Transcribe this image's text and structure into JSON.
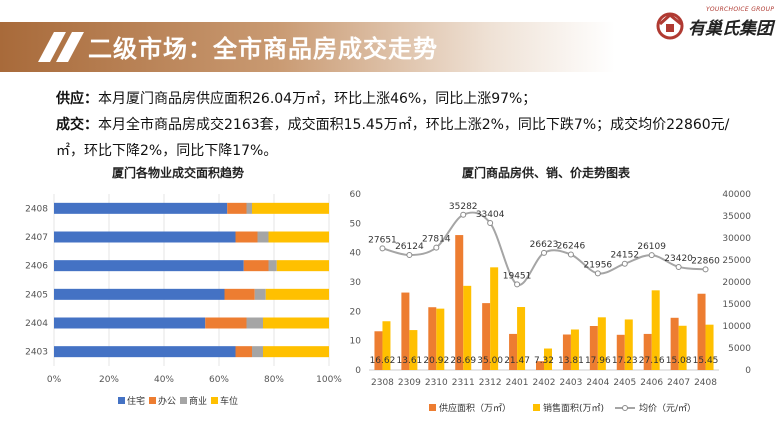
{
  "header": {
    "title": "二级市场：全市商品房成交走势",
    "logo_sub": "YOURCHOICE GROUP",
    "logo_main": "有巢氏集团"
  },
  "summary": {
    "supply_label": "供应：",
    "supply_text": "本月厦门商品房供应面积26.04万㎡，环比上涨46%，同比上涨97%；",
    "deal_label": "成交：",
    "deal_text": "本月全市商品房成交2163套，成交面积15.45万㎡，环比上涨2%，同比下跌7%；成交均价22860元/㎡，环比下降2%，同比下降17%。"
  },
  "chart_data": [
    {
      "type": "bar",
      "orientation": "horizontal",
      "stacked": "percent",
      "title": "厦门各物业成交面积趋势",
      "categories": [
        "2408",
        "2407",
        "2406",
        "2405",
        "2404",
        "2403"
      ],
      "series": [
        {
          "name": "住宅",
          "color": "#4472c4",
          "values": [
            63,
            66,
            69,
            62,
            55,
            66
          ]
        },
        {
          "name": "办公",
          "color": "#ed7d31",
          "values": [
            7,
            8,
            9,
            11,
            15,
            6
          ]
        },
        {
          "name": "商业",
          "color": "#a5a5a5",
          "values": [
            2,
            4,
            3,
            4,
            6,
            4
          ]
        },
        {
          "name": "车位",
          "color": "#ffc000",
          "values": [
            28,
            22,
            19,
            23,
            24,
            24
          ]
        }
      ],
      "xlim": [
        0,
        100
      ],
      "xticks": [
        "0%",
        "20%",
        "40%",
        "60%",
        "80%",
        "100%"
      ],
      "legend": "bottom"
    },
    {
      "type": "bar+line",
      "title": "厦门商品房供、销、价走势图表",
      "categories": [
        "2308",
        "2309",
        "2310",
        "2311",
        "2312",
        "2401",
        "2402",
        "2403",
        "2404",
        "2405",
        "2406",
        "2407",
        "2408"
      ],
      "series": [
        {
          "name": "供应面积（万㎡）",
          "type": "bar",
          "axis": "left",
          "color": "#ed7d31",
          "values": [
            13.2,
            26.4,
            21.4,
            46.0,
            22.8,
            12.3,
            3.0,
            12.1,
            15.0,
            12.0,
            12.3,
            17.8,
            26.0
          ]
        },
        {
          "name": "销售面积(万㎡)",
          "type": "bar",
          "axis": "left",
          "color": "#ffc000",
          "values": [
            16.62,
            13.61,
            20.92,
            28.69,
            35.0,
            21.47,
            7.32,
            13.81,
            17.96,
            17.23,
            27.16,
            15.08,
            15.45
          ],
          "labels": [
            "16.62",
            "13.61",
            "20.92",
            "28.69",
            "35.00",
            "21.47",
            "7.32",
            "13.81",
            "17.96",
            "17.23",
            "27.16",
            "15.08",
            "15.45"
          ]
        },
        {
          "name": "均价（元/㎡）",
          "type": "line",
          "axis": "right",
          "color": "#a5a5a5",
          "values": [
            27651,
            26124,
            27814,
            35282,
            33404,
            19451,
            26623,
            26246,
            21956,
            24152,
            26109,
            23420,
            22860
          ],
          "labels": [
            "27651",
            "26124",
            "27814",
            "35282",
            "33404",
            "19451",
            "26623",
            "26246",
            "21956",
            "24152",
            "26109",
            "23420",
            "22860"
          ]
        }
      ],
      "ylim_left": [
        0,
        60
      ],
      "yticks_left": [
        "0",
        "10",
        "20",
        "30",
        "40",
        "50",
        "60"
      ],
      "ylim_right": [
        0,
        40000
      ],
      "yticks_right": [
        "0",
        "5000",
        "10000",
        "15000",
        "20000",
        "25000",
        "30000",
        "35000",
        "40000"
      ],
      "legend": "bottom"
    }
  ]
}
